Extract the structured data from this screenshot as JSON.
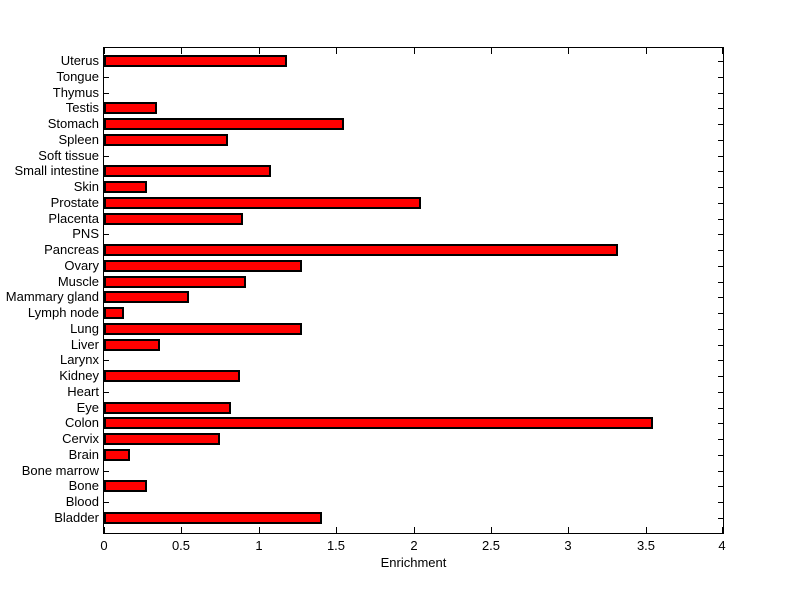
{
  "figure": {
    "background_color": "#ffffff"
  },
  "chart_data": {
    "type": "bar",
    "orientation": "horizontal",
    "title": "",
    "xlabel": "Enrichment",
    "ylabel": "",
    "xlim": [
      0,
      4
    ],
    "xtick_labels": [
      "0",
      "0.5",
      "1",
      "1.5",
      "2",
      "2.5",
      "3",
      "3.5",
      "4"
    ],
    "grid": false,
    "legend": "none",
    "bar_color": "#ff0000",
    "bar_edge_color": "#000000",
    "axis_color": "#000000",
    "categories_top_to_bottom": [
      "Uterus",
      "Tongue",
      "Thymus",
      "Testis",
      "Stomach",
      "Spleen",
      "Soft tissue",
      "Small intestine",
      "Skin",
      "Prostate",
      "Placenta",
      "PNS",
      "Pancreas",
      "Ovary",
      "Muscle",
      "Mammary gland",
      "Lymph node",
      "Lung",
      "Liver",
      "Larynx",
      "Kidney",
      "Heart",
      "Eye",
      "Colon",
      "Cervix",
      "Brain",
      "Bone marrow",
      "Bone",
      "Blood",
      "Bladder"
    ],
    "values": [
      1.18,
      0,
      0,
      0.34,
      1.55,
      0.8,
      0,
      1.08,
      0.28,
      2.05,
      0.9,
      0,
      3.32,
      1.28,
      0.92,
      0.55,
      0.13,
      1.28,
      0.36,
      0,
      0.88,
      0,
      0.82,
      3.55,
      0.75,
      0.17,
      0,
      0.28,
      0,
      1.41
    ]
  }
}
